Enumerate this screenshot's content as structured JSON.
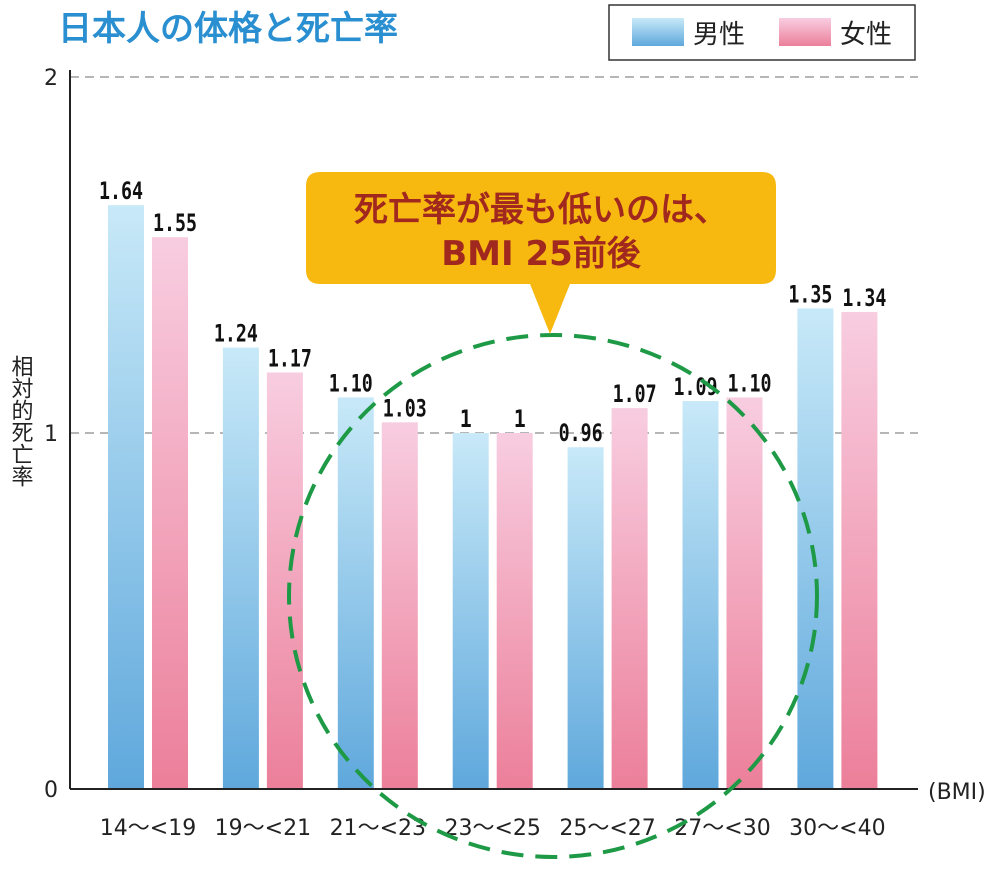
{
  "chart_data": {
    "type": "bar",
    "title": "日本人の体格と死亡率",
    "ylabel": "相対的死亡率",
    "xlabel": "(BMI)",
    "ylim": [
      0,
      2
    ],
    "yticks": [
      "0",
      "1",
      "2"
    ],
    "grid_values": [
      1,
      2
    ],
    "legend_position": "top-right",
    "categories": [
      "14〜<19",
      "19〜<21",
      "21〜<23",
      "23〜<25",
      "25〜<27",
      "27〜<30",
      "30〜<40"
    ],
    "series": [
      {
        "name": "男性",
        "values": [
          1.64,
          1.24,
          1.1,
          1,
          0.96,
          1.09,
          1.35
        ],
        "labels": [
          "1.64",
          "1.24",
          "1.10",
          "1",
          "0.96",
          "1.09",
          "1.35"
        ],
        "color_top": "#c8e9f8",
        "color_bottom": "#5fa8dc"
      },
      {
        "name": "女性",
        "values": [
          1.55,
          1.17,
          1.03,
          1,
          1.07,
          1.1,
          1.34
        ],
        "labels": [
          "1.55",
          "1.17",
          "1.03",
          "1",
          "1.07",
          "1.10",
          "1.34"
        ],
        "color_top": "#f8cde0",
        "color_bottom": "#ec7f9a"
      }
    ],
    "callout": {
      "line1": "死亡率が最も低いのは、",
      "line2": "BMI 25前後",
      "fill": "#f7b810",
      "text_color": "#a0281e"
    },
    "highlight_circle_color": "#1e9a46",
    "title_color": "#2a8fd0"
  }
}
